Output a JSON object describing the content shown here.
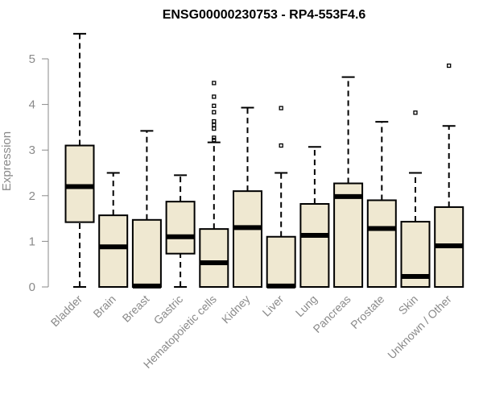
{
  "chart_data": {
    "type": "box",
    "title": "ENSG00000230753 - RP4-553F4.6",
    "xlabel": "",
    "ylabel": "Expression",
    "ylim": [
      0,
      5.5
    ],
    "yticks": [
      "0",
      "1",
      "2",
      "3",
      "4",
      "5"
    ],
    "box_fill": "#efe8d1",
    "box_stroke": "#000000",
    "categories": [
      "Bladder",
      "Brain",
      "Breast",
      "Gastric",
      "Hematopoietic cells",
      "Kidney",
      "Liver",
      "Lung",
      "Pancreas",
      "Prostate",
      "Skin",
      "Unknown / Other"
    ],
    "boxes": [
      {
        "min": 0,
        "q1": 1.42,
        "median": 2.2,
        "q3": 3.1,
        "max": 5.55,
        "outliers": []
      },
      {
        "min": 0,
        "q1": 0,
        "median": 0.88,
        "q3": 1.57,
        "max": 2.5,
        "outliers": []
      },
      {
        "min": 0,
        "q1": 0,
        "median": 0.02,
        "q3": 1.47,
        "max": 3.42,
        "outliers": []
      },
      {
        "min": 0,
        "q1": 0.73,
        "median": 1.1,
        "q3": 1.87,
        "max": 2.45,
        "outliers": []
      },
      {
        "min": 0,
        "q1": 0,
        "median": 0.53,
        "q3": 1.27,
        "max": 3.17,
        "outliers": [
          3.22,
          3.27,
          3.47,
          3.55,
          3.63,
          3.83,
          3.97,
          4.17,
          4.47
        ]
      },
      {
        "min": 0,
        "q1": 0,
        "median": 1.3,
        "q3": 2.1,
        "max": 3.93,
        "outliers": []
      },
      {
        "min": 0,
        "q1": 0,
        "median": 0.02,
        "q3": 1.1,
        "max": 2.5,
        "outliers": [
          3.1,
          3.92
        ]
      },
      {
        "min": 0,
        "q1": 0,
        "median": 1.13,
        "q3": 1.82,
        "max": 3.07,
        "outliers": []
      },
      {
        "min": 0,
        "q1": 0,
        "median": 1.98,
        "q3": 2.27,
        "max": 4.6,
        "outliers": []
      },
      {
        "min": 0,
        "q1": 0,
        "median": 1.28,
        "q3": 1.9,
        "max": 3.62,
        "outliers": []
      },
      {
        "min": 0,
        "q1": 0,
        "median": 0.23,
        "q3": 1.43,
        "max": 2.5,
        "outliers": [
          3.82
        ]
      },
      {
        "min": 0,
        "q1": 0,
        "median": 0.9,
        "q3": 1.75,
        "max": 3.53,
        "outliers": [
          4.85
        ]
      }
    ]
  }
}
